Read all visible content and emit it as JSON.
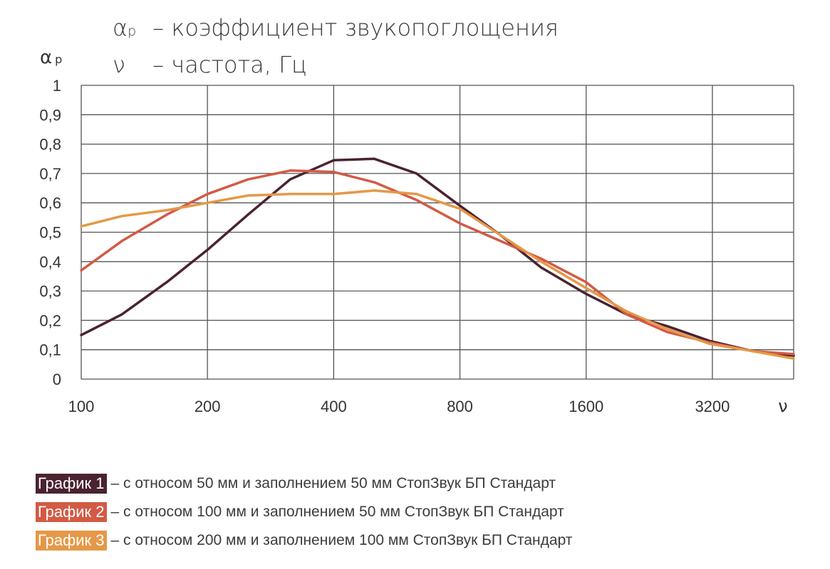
{
  "title": {
    "line1": {
      "symbol": "α",
      "subscript": "р",
      "text": "– коэффициент звукопоглощения"
    },
    "line2": {
      "symbol": "ν",
      "text": "– частота, Гц"
    }
  },
  "y_axis_symbol": {
    "symbol": "α",
    "subscript": "р"
  },
  "x_axis_symbol": "ν",
  "colors": {
    "grid": "#555555",
    "series1": "#4a2231",
    "series2": "#d35a45",
    "series3": "#e59848"
  },
  "legend": [
    {
      "label": "График 1",
      "text": "– с относом 50 мм и заполнением 50 мм СтопЗвук БП Стандарт",
      "color": "#4a2231"
    },
    {
      "label": "График 2",
      "text": "– с относом 100 мм и заполнением 50 мм СтопЗвук БП Стандарт",
      "color": "#d35a45"
    },
    {
      "label": "График 3",
      "text": "– с относом 200 мм и заполнением 100 мм СтопЗвук БП Стандарт",
      "color": "#e59848"
    }
  ],
  "chart_data": {
    "type": "line",
    "x_scale": "log2",
    "x_ticks": [
      100,
      200,
      400,
      800,
      1600,
      3200
    ],
    "x_tick_labels": [
      "100",
      "200",
      "400",
      "800",
      "1600",
      "3200"
    ],
    "xlim": [
      100,
      5000
    ],
    "y_ticks": [
      0,
      0.1,
      0.2,
      0.3,
      0.4,
      0.5,
      0.6,
      0.7,
      0.8,
      0.9,
      1
    ],
    "y_tick_labels": [
      "0",
      "0,1",
      "0,2",
      "0,3",
      "0,4",
      "0,5",
      "0,6",
      "0,7",
      "0,8",
      "0,9",
      "1"
    ],
    "ylim": [
      0,
      1
    ],
    "grid": true,
    "x": [
      100,
      125,
      160,
      200,
      250,
      315,
      400,
      500,
      630,
      800,
      1000,
      1250,
      1600,
      2000,
      2500,
      3150,
      4000,
      5000
    ],
    "series": [
      {
        "name": "График 1",
        "color": "#4a2231",
        "values": [
          0.15,
          0.22,
          0.33,
          0.44,
          0.56,
          0.68,
          0.745,
          0.75,
          0.7,
          0.59,
          0.49,
          0.38,
          0.29,
          0.22,
          0.18,
          0.13,
          0.095,
          0.08
        ]
      },
      {
        "name": "График 2",
        "color": "#d35a45",
        "values": [
          0.37,
          0.47,
          0.56,
          0.63,
          0.68,
          0.71,
          0.705,
          0.67,
          0.61,
          0.53,
          0.47,
          0.41,
          0.33,
          0.22,
          0.16,
          0.125,
          0.095,
          0.085
        ]
      },
      {
        "name": "График 3",
        "color": "#e59848",
        "values": [
          0.52,
          0.555,
          0.575,
          0.6,
          0.625,
          0.63,
          0.63,
          0.642,
          0.63,
          0.58,
          0.49,
          0.4,
          0.31,
          0.23,
          0.17,
          0.12,
          0.095,
          0.07
        ]
      }
    ]
  }
}
